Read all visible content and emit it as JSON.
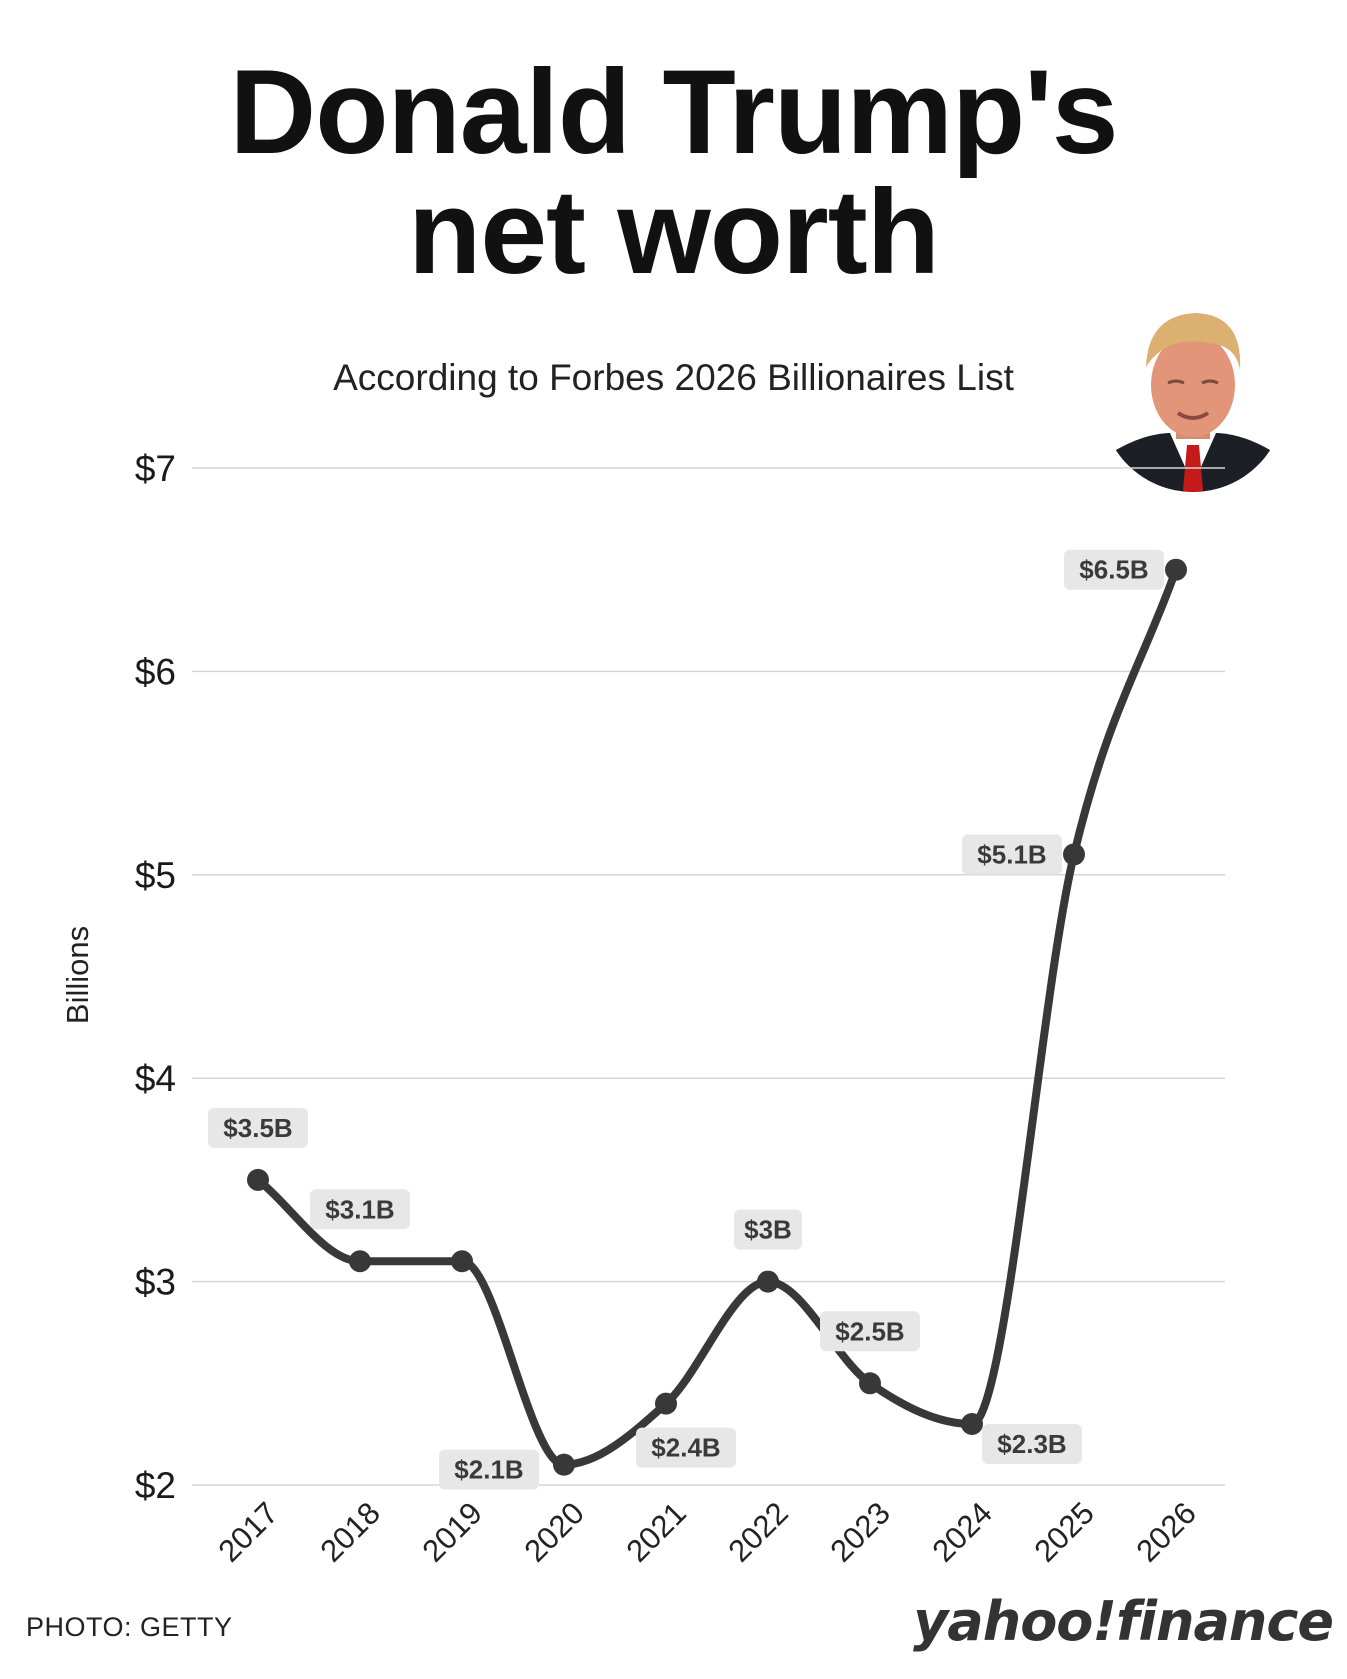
{
  "header": {
    "title_line1": "Donald Trump's",
    "title_line2": "net worth",
    "subtitle": "According to Forbes 2026 Billionaires List"
  },
  "footer": {
    "credit": "PHOTO: GETTY",
    "brand_main": "yahoo",
    "brand_bang": "!",
    "brand_suffix": "finance"
  },
  "colors": {
    "line": "#383838",
    "grid": "#d6d6d6",
    "label_bg": "#e7e7e7",
    "label_text": "#3a3a3a"
  },
  "chart_data": {
    "type": "line",
    "title": "Donald Trump's net worth",
    "subtitle": "According to Forbes 2026 Billionaires List",
    "ylabel": "Billions",
    "xlabel": "",
    "x": [
      "2017",
      "2018",
      "2019",
      "2020",
      "2021",
      "2022",
      "2023",
      "2024",
      "2025",
      "2026"
    ],
    "values": [
      3.5,
      3.1,
      3.1,
      2.1,
      2.4,
      3.0,
      2.5,
      2.3,
      5.1,
      6.5
    ],
    "data_labels": [
      "$3.5B",
      "$3.1B",
      "",
      "$2.1B",
      "$2.4B",
      "$3B",
      "$2.5B",
      "$2.3B",
      "$5.1B",
      "$6.5B"
    ],
    "label_positions": [
      "above",
      "above",
      "none",
      "left-below",
      "below",
      "above",
      "above",
      "right-below",
      "left",
      "left"
    ],
    "ylim": [
      2,
      7
    ],
    "yticks": [
      2,
      3,
      4,
      5,
      6,
      7
    ],
    "ytick_labels": [
      "$2",
      "$3",
      "$4",
      "$5",
      "$6",
      "$7"
    ],
    "grid": true,
    "smooth": true
  }
}
